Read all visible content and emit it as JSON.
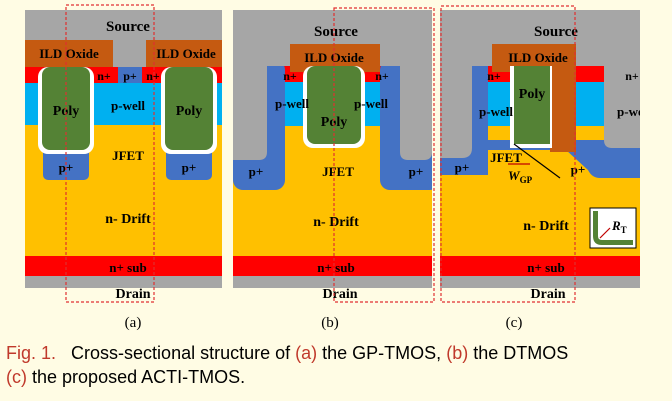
{
  "colors": {
    "source": "#A6A6A6",
    "oxide": "#C55A11",
    "nplus": "#FF0000",
    "pwell": "#00B0F0",
    "pplus": "#4472C4",
    "drift": "#FFC000",
    "poly": "#548235",
    "drain": "#A6A6A6",
    "box": "#E03030",
    "caption_accent": "#C0392B",
    "background": "#FFFCE4"
  },
  "panel_a": {
    "source": "Source",
    "ild_left": "ILD Oxide",
    "ild_right": "ILD Oxide",
    "nplus_1": "n+",
    "pplus_top": "p+",
    "nplus_2": "n+",
    "poly_left": "Poly",
    "pwell": "p-well",
    "poly_right": "Poly",
    "jfet": "JFET",
    "pplus_left": "p+",
    "pplus_right": "p+",
    "drift": "n- Drift",
    "nsub": "n+ sub",
    "drain": "Drain",
    "sublabel": "(a)"
  },
  "panel_b": {
    "source": "Source",
    "ild": "ILD Oxide",
    "nplus_left": "n+",
    "nplus_right": "n+",
    "pwell_left": "p-well",
    "poly": "Poly",
    "pwell_right": "p-well",
    "pplus_left": "p+",
    "jfet": "JFET",
    "pplus_right": "p+",
    "drift": "n- Drift",
    "nsub": "n+ sub",
    "drain": "Drain",
    "sublabel": "(b)"
  },
  "panel_c": {
    "source": "Source",
    "ild": "ILD Oxide",
    "nplus_left": "n+",
    "nplus_right": "n+",
    "poly": "Poly",
    "pwell_left": "p-well",
    "pwell_right": "p-well",
    "jfet": "JFET",
    "wgp_main": "W",
    "wgp_sub": "GP",
    "pplus_left": "p+",
    "pplus_right": "p+",
    "drift": "n- Drift",
    "rt_main": "R",
    "rt_sub": "T",
    "nsub": "n+ sub",
    "drain": "Drain",
    "sublabel": "(c)"
  },
  "caption": {
    "fig": "Fig. 1.",
    "t1": "Cross-sectional structure of",
    "a": "(a)",
    "t2": "the GP-TMOS,",
    "b": "(b)",
    "t3": "the DTMOS",
    "c": "(c)",
    "t4": "the proposed ACTI-TMOS."
  }
}
